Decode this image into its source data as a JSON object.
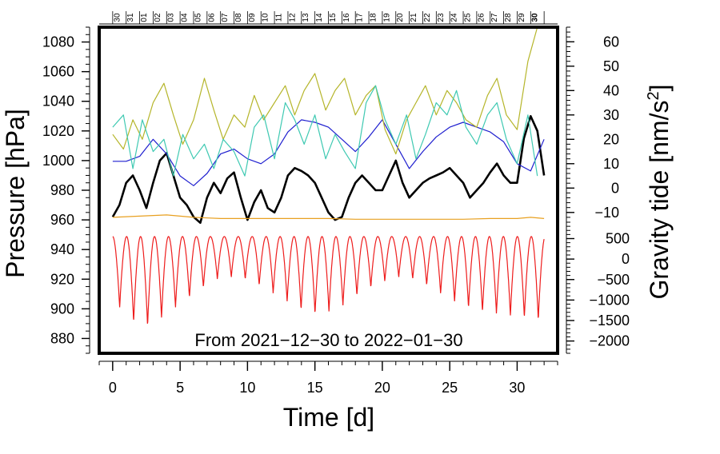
{
  "chart_data": {
    "type": "line",
    "annotation": "From 2021−12−30 to 2022−01−30",
    "xlabel": "Time [d]",
    "ylabel_left": "Pressure [hPa]",
    "ylabel_right_base": "Gravity tide [nm/s",
    "ylabel_right_sup": "2",
    "ylabel_right_close": "]",
    "xlim": [
      -1,
      33
    ],
    "ylim_left": [
      870,
      1090
    ],
    "x_ticks": [
      0,
      5,
      10,
      15,
      20,
      25,
      30
    ],
    "x_tick_labels": [
      "0",
      "5",
      "10",
      "15",
      "20",
      "25",
      "30"
    ],
    "y_left_ticks": [
      880,
      900,
      920,
      940,
      960,
      980,
      1000,
      1020,
      1040,
      1060,
      1080
    ],
    "y_left_tick_labels": [
      "880",
      "900",
      "920",
      "940",
      "960",
      "980",
      "1000",
      "1020",
      "1040",
      "1060",
      "1080"
    ],
    "right_upper_axis": {
      "range": [
        -14,
        66
      ],
      "ticks": [
        -10,
        0,
        10,
        20,
        30,
        40,
        50,
        60
      ],
      "labels": [
        "−10",
        "0",
        "10",
        "20",
        "30",
        "40",
        "50",
        "60"
      ]
    },
    "right_lower_axis": {
      "range": [
        -2300,
        900
      ],
      "ticks": [
        -2000,
        -1500,
        -1000,
        -500,
        0,
        500
      ],
      "labels": [
        "−2000",
        "−1500",
        "−1000",
        "−500",
        "0",
        "500"
      ]
    },
    "top_day_labels": [
      "30",
      "31",
      "01",
      "02",
      "03",
      "04",
      "05",
      "06",
      "07",
      "08",
      "09",
      "10",
      "11",
      "12",
      "13",
      "14",
      "15",
      "16",
      "17",
      "18",
      "19",
      "20",
      "21",
      "22",
      "23",
      "24",
      "25",
      "26",
      "27",
      "28",
      "29",
      "30"
    ],
    "top_day_start_x": 0,
    "top_day_step": 1,
    "series": [
      {
        "name": "pressure",
        "axis": "left",
        "color": "#000000",
        "x": [
          0,
          0.5,
          1,
          1.5,
          2,
          2.5,
          3,
          3.5,
          4,
          4.5,
          5,
          5.5,
          6,
          6.5,
          7,
          7.5,
          8,
          8.5,
          9,
          9.5,
          10,
          10.5,
          11,
          11.5,
          12,
          12.5,
          13,
          13.5,
          14,
          14.5,
          15,
          15.5,
          16,
          16.5,
          17,
          17.5,
          18,
          18.5,
          19,
          19.5,
          20,
          20.5,
          21,
          21.5,
          22,
          22.5,
          23,
          23.5,
          24,
          24.5,
          25,
          25.5,
          26,
          26.5,
          27,
          27.5,
          28,
          28.5,
          29,
          29.5,
          30,
          30.5,
          31,
          31.5,
          32
        ],
        "values": [
          962,
          970,
          985,
          990,
          980,
          968,
          985,
          1000,
          1005,
          990,
          975,
          970,
          962,
          958,
          975,
          985,
          978,
          988,
          992,
          975,
          960,
          972,
          980,
          968,
          965,
          975,
          990,
          995,
          993,
          990,
          985,
          975,
          965,
          960,
          962,
          975,
          985,
          990,
          985,
          980,
          980,
          990,
          1000,
          985,
          975,
          980,
          985,
          988,
          990,
          992,
          995,
          990,
          985,
          975,
          980,
          985,
          992,
          998,
          990,
          985,
          985,
          1015,
          1030,
          1020,
          990
        ]
      },
      {
        "name": "blue",
        "axis": "right_upper",
        "color": "#1f1fcf",
        "x": [
          0,
          1,
          2,
          3,
          4,
          5,
          6,
          7,
          8,
          9,
          10,
          11,
          12,
          13,
          14,
          15,
          16,
          17,
          18,
          19,
          20,
          21,
          22,
          23,
          24,
          25,
          26,
          27,
          28,
          29,
          30,
          31,
          32
        ],
        "values": [
          11,
          11,
          13,
          20,
          14,
          5,
          1,
          6,
          14,
          16,
          12,
          10,
          14,
          23,
          28,
          27,
          25,
          20,
          15,
          21,
          28,
          18,
          8,
          15,
          21,
          25,
          27,
          25,
          23,
          19,
          10,
          7,
          20
        ]
      },
      {
        "name": "olive",
        "axis": "right_upper",
        "color": "#b5b52a",
        "x": [
          0,
          0.8,
          1.5,
          2.2,
          3,
          3.8,
          4.5,
          5.2,
          6,
          6.8,
          7.5,
          8.2,
          9,
          9.8,
          10.5,
          11.2,
          12,
          12.8,
          13.5,
          14.2,
          15,
          15.8,
          16.5,
          17.2,
          18,
          18.8,
          19.5,
          20.2,
          21,
          21.8,
          22.5,
          23.2,
          24,
          24.8,
          25.5,
          26.2,
          27,
          27.8,
          28.5,
          29.2,
          30,
          30.8,
          31.5
        ],
        "values": [
          22,
          16,
          28,
          20,
          35,
          43,
          30,
          18,
          28,
          45,
          32,
          20,
          30,
          25,
          38,
          28,
          35,
          42,
          30,
          40,
          47,
          32,
          40,
          45,
          30,
          38,
          42,
          24,
          14,
          28,
          35,
          42,
          30,
          40,
          35,
          28,
          25,
          38,
          45,
          30,
          24,
          52,
          66
        ]
      },
      {
        "name": "teal",
        "axis": "right_upper",
        "color": "#3fc9b2",
        "x": [
          0,
          0.8,
          1.5,
          2.2,
          3,
          3.8,
          4.5,
          5.2,
          6,
          6.8,
          7.5,
          8.2,
          9,
          9.8,
          10.5,
          11.2,
          12,
          12.8,
          13.5,
          14.2,
          15,
          15.8,
          16.5,
          17.2,
          18,
          18.8,
          19.5,
          20.2,
          21,
          21.8,
          22.5,
          23.2,
          24,
          24.8,
          25.5,
          26.2,
          27,
          27.8,
          28.5,
          29.2,
          30,
          30.8,
          31.5
        ],
        "values": [
          25,
          30,
          8,
          28,
          15,
          20,
          5,
          22,
          12,
          18,
          8,
          20,
          15,
          5,
          25,
          30,
          12,
          35,
          28,
          18,
          30,
          12,
          22,
          15,
          8,
          35,
          42,
          28,
          18,
          30,
          12,
          22,
          35,
          30,
          40,
          25,
          18,
          30,
          35,
          20,
          10,
          30,
          5
        ]
      },
      {
        "name": "orange",
        "axis": "right_upper",
        "color": "#e8a020",
        "x": [
          0,
          2,
          4,
          6,
          8,
          10,
          12,
          14,
          16,
          18,
          20,
          22,
          24,
          26,
          28,
          30,
          31,
          32
        ],
        "values": [
          -12,
          -11.5,
          -11,
          -12,
          -12.5,
          -12.5,
          -12.5,
          -12.5,
          -12.5,
          -12.8,
          -12.8,
          -12.8,
          -12.8,
          -12.8,
          -12.5,
          -12.5,
          -12,
          -12.5
        ]
      }
    ],
    "tide_series": {
      "name": "tide",
      "axis": "right_lower",
      "color": "#ee1c1c",
      "x_start": 0,
      "x_end": 32,
      "period_days": 1.035,
      "peak": 550,
      "trough": [
        -1200,
        -1550,
        -1650,
        -1450,
        -1200,
        -950,
        -700,
        -500,
        -450,
        -500,
        -650,
        -850,
        -1050,
        -1250,
        -1350,
        -1300,
        -1150,
        -900,
        -700,
        -550,
        -450,
        -500,
        -650,
        -850,
        -1050,
        -1200,
        -1300,
        -1350,
        -1400,
        -1450,
        -1500,
        -1300
      ]
    }
  }
}
